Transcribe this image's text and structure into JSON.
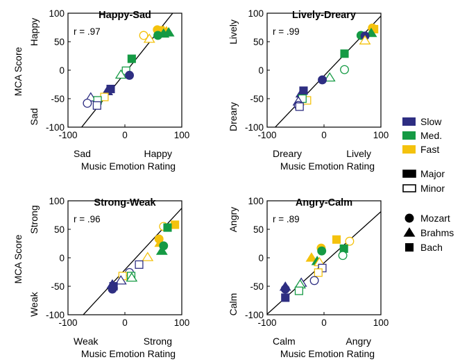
{
  "colors": {
    "Slow": "#2e2e82",
    "Med.": "#159a44",
    "Fast": "#f4c20d"
  },
  "chart_data": [
    {
      "type": "scatter",
      "title": "Happy-Sad",
      "r_label": "r = .97",
      "xlabel": "Music Emotion Rating",
      "ylabel": "MCA Score",
      "x_pole_low": "Sad",
      "x_pole_high": "Happy",
      "y_pole_low": "Sad",
      "y_pole_high": "Happy",
      "xlim": [
        -100,
        100
      ],
      "ylim": [
        -100,
        100
      ],
      "xticks": [
        "-100",
        "0",
        "100"
      ],
      "yticks": [
        "-100",
        "-50",
        "0",
        "50",
        "100"
      ],
      "regression_line": {
        "slope": 1.25,
        "intercept": -5
      },
      "points": [
        {
          "x": 57,
          "y": 71,
          "speed": "Fast",
          "mode": "Major",
          "composer": "Mozart"
        },
        {
          "x": 62,
          "y": 70,
          "speed": "Fast",
          "mode": "Major",
          "composer": "Bach"
        },
        {
          "x": 68,
          "y": 69,
          "speed": "Fast",
          "mode": "Major",
          "composer": "Brahms"
        },
        {
          "x": 73,
          "y": 68,
          "speed": "Fast",
          "mode": "Major",
          "composer": "Brahms"
        },
        {
          "x": 68,
          "y": 64,
          "speed": "Med.",
          "mode": "Major",
          "composer": "Brahms"
        },
        {
          "x": 77,
          "y": 66,
          "speed": "Med.",
          "mode": "Major",
          "composer": "Brahms"
        },
        {
          "x": 58,
          "y": 61,
          "speed": "Med.",
          "mode": "Major",
          "composer": "Mozart"
        },
        {
          "x": 33,
          "y": 61,
          "speed": "Fast",
          "mode": "Minor",
          "composer": "Mozart"
        },
        {
          "x": 43,
          "y": 55,
          "speed": "Fast",
          "mode": "Minor",
          "composer": "Brahms"
        },
        {
          "x": 12,
          "y": 20,
          "speed": "Med.",
          "mode": "Major",
          "composer": "Bach"
        },
        {
          "x": 2,
          "y": -1,
          "speed": "Med.",
          "mode": "Minor",
          "composer": "Bach"
        },
        {
          "x": -7,
          "y": -8,
          "speed": "Med.",
          "mode": "Minor",
          "composer": "Brahms"
        },
        {
          "x": 8,
          "y": -9,
          "speed": "Slow",
          "mode": "Major",
          "composer": "Mozart"
        },
        {
          "x": -25,
          "y": -33,
          "speed": "Slow",
          "mode": "Major",
          "composer": "Bach"
        },
        {
          "x": -31,
          "y": -37,
          "speed": "Slow",
          "mode": "Major",
          "composer": "Brahms"
        },
        {
          "x": -36,
          "y": -47,
          "speed": "Fast",
          "mode": "Minor",
          "composer": "Bach"
        },
        {
          "x": -60,
          "y": -48,
          "speed": "Slow",
          "mode": "Minor",
          "composer": "Brahms"
        },
        {
          "x": -48,
          "y": -53,
          "speed": "Med.",
          "mode": "Minor",
          "composer": "Bach"
        },
        {
          "x": -66,
          "y": -58,
          "speed": "Slow",
          "mode": "Minor",
          "composer": "Mozart"
        },
        {
          "x": -49,
          "y": -62,
          "speed": "Slow",
          "mode": "Minor",
          "composer": "Bach"
        }
      ]
    },
    {
      "type": "scatter",
      "title": "Lively-Dreary",
      "r_label": "r = .99",
      "xlabel": "Music Emotion Rating",
      "ylabel": "",
      "x_pole_low": "Dreary",
      "x_pole_high": "Lively",
      "y_pole_low": "Dreary",
      "y_pole_high": "Lively",
      "xlim": [
        -100,
        100
      ],
      "ylim": [
        -100,
        100
      ],
      "xticks": [
        "-100",
        "0",
        "100"
      ],
      "yticks": [
        "-100",
        "-50",
        "0",
        "50",
        "100"
      ],
      "regression_line": {
        "slope": 1.05,
        "intercept": -10
      },
      "points": [
        {
          "x": 85,
          "y": 74,
          "speed": "Fast",
          "mode": "Major",
          "composer": "Mozart"
        },
        {
          "x": 88,
          "y": 72,
          "speed": "Fast",
          "mode": "Major",
          "composer": "Bach"
        },
        {
          "x": 83,
          "y": 65,
          "speed": "Med.",
          "mode": "Major",
          "composer": "Brahms"
        },
        {
          "x": 65,
          "y": 61,
          "speed": "Med.",
          "mode": "Major",
          "composer": "Mozart"
        },
        {
          "x": 72,
          "y": 60,
          "speed": "Slow",
          "mode": "Major",
          "composer": "Mozart"
        },
        {
          "x": 72,
          "y": 52,
          "speed": "Fast",
          "mode": "Minor",
          "composer": "Brahms"
        },
        {
          "x": 36,
          "y": 29,
          "speed": "Med.",
          "mode": "Major",
          "composer": "Bach"
        },
        {
          "x": 36,
          "y": 1,
          "speed": "Med.",
          "mode": "Minor",
          "composer": "Mozart"
        },
        {
          "x": 10,
          "y": -13,
          "speed": "Med.",
          "mode": "Minor",
          "composer": "Brahms"
        },
        {
          "x": -3,
          "y": -17,
          "speed": "Slow",
          "mode": "Major",
          "composer": "Mozart"
        },
        {
          "x": -36,
          "y": -36,
          "speed": "Slow",
          "mode": "Major",
          "composer": "Bach"
        },
        {
          "x": -40,
          "y": -41,
          "speed": "Slow",
          "mode": "Major",
          "composer": "Brahms"
        },
        {
          "x": -30,
          "y": -53,
          "speed": "Fast",
          "mode": "Minor",
          "composer": "Bach"
        },
        {
          "x": -38,
          "y": -50,
          "speed": "Med.",
          "mode": "Minor",
          "composer": "Bach"
        },
        {
          "x": -45,
          "y": -55,
          "speed": "Slow",
          "mode": "Minor",
          "composer": "Brahms"
        },
        {
          "x": -45,
          "y": -62,
          "speed": "Slow",
          "mode": "Minor",
          "composer": "Mozart"
        },
        {
          "x": -43,
          "y": -64,
          "speed": "Slow",
          "mode": "Minor",
          "composer": "Bach"
        }
      ]
    },
    {
      "type": "scatter",
      "title": "Strong-Weak",
      "r_label": "r = .96",
      "xlabel": "Music Emotion Rating",
      "ylabel": "MCA Score",
      "x_pole_low": "Weak",
      "x_pole_high": "Strong",
      "y_pole_low": "Weak",
      "y_pole_high": "Strong",
      "xlim": [
        -100,
        100
      ],
      "ylim": [
        -100,
        100
      ],
      "xticks": [
        "-100",
        "0",
        "100"
      ],
      "yticks": [
        "-100",
        "-50",
        "0",
        "50",
        "100"
      ],
      "regression_line": {
        "slope": 1.08,
        "intercept": -21
      },
      "points": [
        {
          "x": 88,
          "y": 58,
          "speed": "Fast",
          "mode": "Major",
          "composer": "Bach"
        },
        {
          "x": 68,
          "y": 55,
          "speed": "Fast",
          "mode": "Minor",
          "composer": "Mozart"
        },
        {
          "x": 75,
          "y": 53,
          "speed": "Med.",
          "mode": "Major",
          "composer": "Bach"
        },
        {
          "x": 60,
          "y": 33,
          "speed": "Fast",
          "mode": "Major",
          "composer": "Mozart"
        },
        {
          "x": 62,
          "y": 26,
          "speed": "Fast",
          "mode": "Major",
          "composer": "Brahms"
        },
        {
          "x": 68,
          "y": 21,
          "speed": "Med.",
          "mode": "Major",
          "composer": "Mozart"
        },
        {
          "x": 65,
          "y": 12,
          "speed": "Med.",
          "mode": "Major",
          "composer": "Brahms"
        },
        {
          "x": 40,
          "y": 1,
          "speed": "Fast",
          "mode": "Minor",
          "composer": "Brahms"
        },
        {
          "x": 25,
          "y": -12,
          "speed": "Slow",
          "mode": "Minor",
          "composer": "Bach"
        },
        {
          "x": 8,
          "y": -26,
          "speed": "Slow",
          "mode": "Minor",
          "composer": "Mozart"
        },
        {
          "x": 11,
          "y": -32,
          "speed": "Med.",
          "mode": "Minor",
          "composer": "Bach"
        },
        {
          "x": -4,
          "y": -32,
          "speed": "Fast",
          "mode": "Minor",
          "composer": "Bach"
        },
        {
          "x": 12,
          "y": -35,
          "speed": "Med.",
          "mode": "Minor",
          "composer": "Brahms"
        },
        {
          "x": -7,
          "y": -40,
          "speed": "Slow",
          "mode": "Minor",
          "composer": "Brahms"
        },
        {
          "x": -22,
          "y": -47,
          "speed": "Slow",
          "mode": "Major",
          "composer": "Brahms"
        },
        {
          "x": -20,
          "y": -50,
          "speed": "Slow",
          "mode": "Major",
          "composer": "Bach"
        },
        {
          "x": -22,
          "y": -55,
          "speed": "Slow",
          "mode": "Major",
          "composer": "Mozart"
        }
      ]
    },
    {
      "type": "scatter",
      "title": "Angry-Calm",
      "r_label": "r = .89",
      "xlabel": "Music Emotion Rating",
      "ylabel": "",
      "x_pole_low": "Calm",
      "x_pole_high": "Angry",
      "y_pole_low": "Calm",
      "y_pole_high": "Angry",
      "xlim": [
        -100,
        100
      ],
      "ylim": [
        -100,
        100
      ],
      "xticks": [
        "-100",
        "0",
        "100"
      ],
      "yticks": [
        "-100",
        "-50",
        "0",
        "50",
        "100"
      ],
      "regression_line": {
        "slope": 0.9,
        "intercept": -9
      },
      "points": [
        {
          "x": 22,
          "y": 32,
          "speed": "Fast",
          "mode": "Major",
          "composer": "Bach"
        },
        {
          "x": 45,
          "y": 29,
          "speed": "Fast",
          "mode": "Minor",
          "composer": "Mozart"
        },
        {
          "x": 35,
          "y": 16,
          "speed": "Med.",
          "mode": "Major",
          "composer": "Bach"
        },
        {
          "x": -5,
          "y": 17,
          "speed": "Fast",
          "mode": "Major",
          "composer": "Mozart"
        },
        {
          "x": -4,
          "y": 12,
          "speed": "Med.",
          "mode": "Major",
          "composer": "Mozart"
        },
        {
          "x": 33,
          "y": 4,
          "speed": "Med.",
          "mode": "Minor",
          "composer": "Mozart"
        },
        {
          "x": -22,
          "y": 0,
          "speed": "Fast",
          "mode": "Major",
          "composer": "Brahms"
        },
        {
          "x": -12,
          "y": -6,
          "speed": "Med.",
          "mode": "Major",
          "composer": "Brahms"
        },
        {
          "x": -8,
          "y": -8,
          "speed": "Fast",
          "mode": "Minor",
          "composer": "Brahms"
        },
        {
          "x": -3,
          "y": -18,
          "speed": "Slow",
          "mode": "Minor",
          "composer": "Bach"
        },
        {
          "x": -10,
          "y": -26,
          "speed": "Fast",
          "mode": "Minor",
          "composer": "Bach"
        },
        {
          "x": -17,
          "y": -40,
          "speed": "Slow",
          "mode": "Minor",
          "composer": "Mozart"
        },
        {
          "x": -40,
          "y": -44,
          "speed": "Slow",
          "mode": "Minor",
          "composer": "Brahms"
        },
        {
          "x": -42,
          "y": -47,
          "speed": "Med.",
          "mode": "Minor",
          "composer": "Brahms"
        },
        {
          "x": -44,
          "y": -58,
          "speed": "Med.",
          "mode": "Minor",
          "composer": "Bach"
        },
        {
          "x": -68,
          "y": -51,
          "speed": "Slow",
          "mode": "Major",
          "composer": "Brahms"
        },
        {
          "x": -68,
          "y": -55,
          "speed": "Slow",
          "mode": "Major",
          "composer": "Mozart"
        },
        {
          "x": -68,
          "y": -70,
          "speed": "Slow",
          "mode": "Major",
          "composer": "Bach"
        }
      ]
    }
  ],
  "legend": {
    "tempo": [
      {
        "label": "Slow",
        "key": "Slow"
      },
      {
        "label": "Med.",
        "key": "Med."
      },
      {
        "label": "Fast",
        "key": "Fast"
      }
    ],
    "mode": [
      {
        "label": "Major",
        "filled": true
      },
      {
        "label": "Minor",
        "filled": false
      }
    ],
    "composer": [
      {
        "label": "Mozart",
        "shape": "circle"
      },
      {
        "label": "Brahms",
        "shape": "triangle"
      },
      {
        "label": "Bach",
        "shape": "square"
      }
    ]
  }
}
